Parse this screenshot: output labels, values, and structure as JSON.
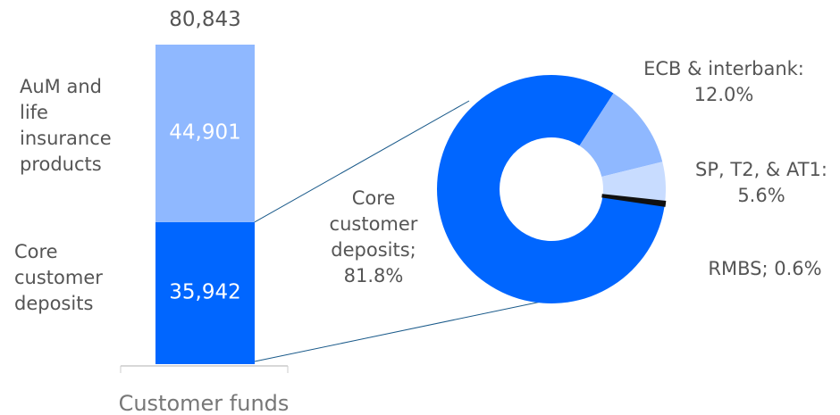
{
  "chart_data": [
    {
      "type": "stacked_bar",
      "categories": [
        "Customer funds"
      ],
      "series": [
        {
          "name": "Core customer deposits",
          "color": "#0066ff",
          "values": [
            35942
          ],
          "value_labels": [
            "35,942"
          ]
        },
        {
          "name": "AuM and life insurance products",
          "color": "#8fb8ff",
          "values": [
            44901
          ],
          "value_labels": [
            "44,901"
          ]
        }
      ],
      "totals": [
        80843
      ],
      "total_labels": [
        "80,843"
      ]
    },
    {
      "type": "donut",
      "values": [
        81.8,
        12.0,
        5.6,
        0.6
      ],
      "value_labels": [
        "Core customer deposits; 81.8%",
        "ECB & interbank: 12.0%",
        "SP, T2, & AT1: 5.6%",
        "RMBS; 0.6%"
      ],
      "colors": [
        "#0066ff",
        "#8fb8ff",
        "#c8dcff",
        "#111111"
      ]
    }
  ]
}
